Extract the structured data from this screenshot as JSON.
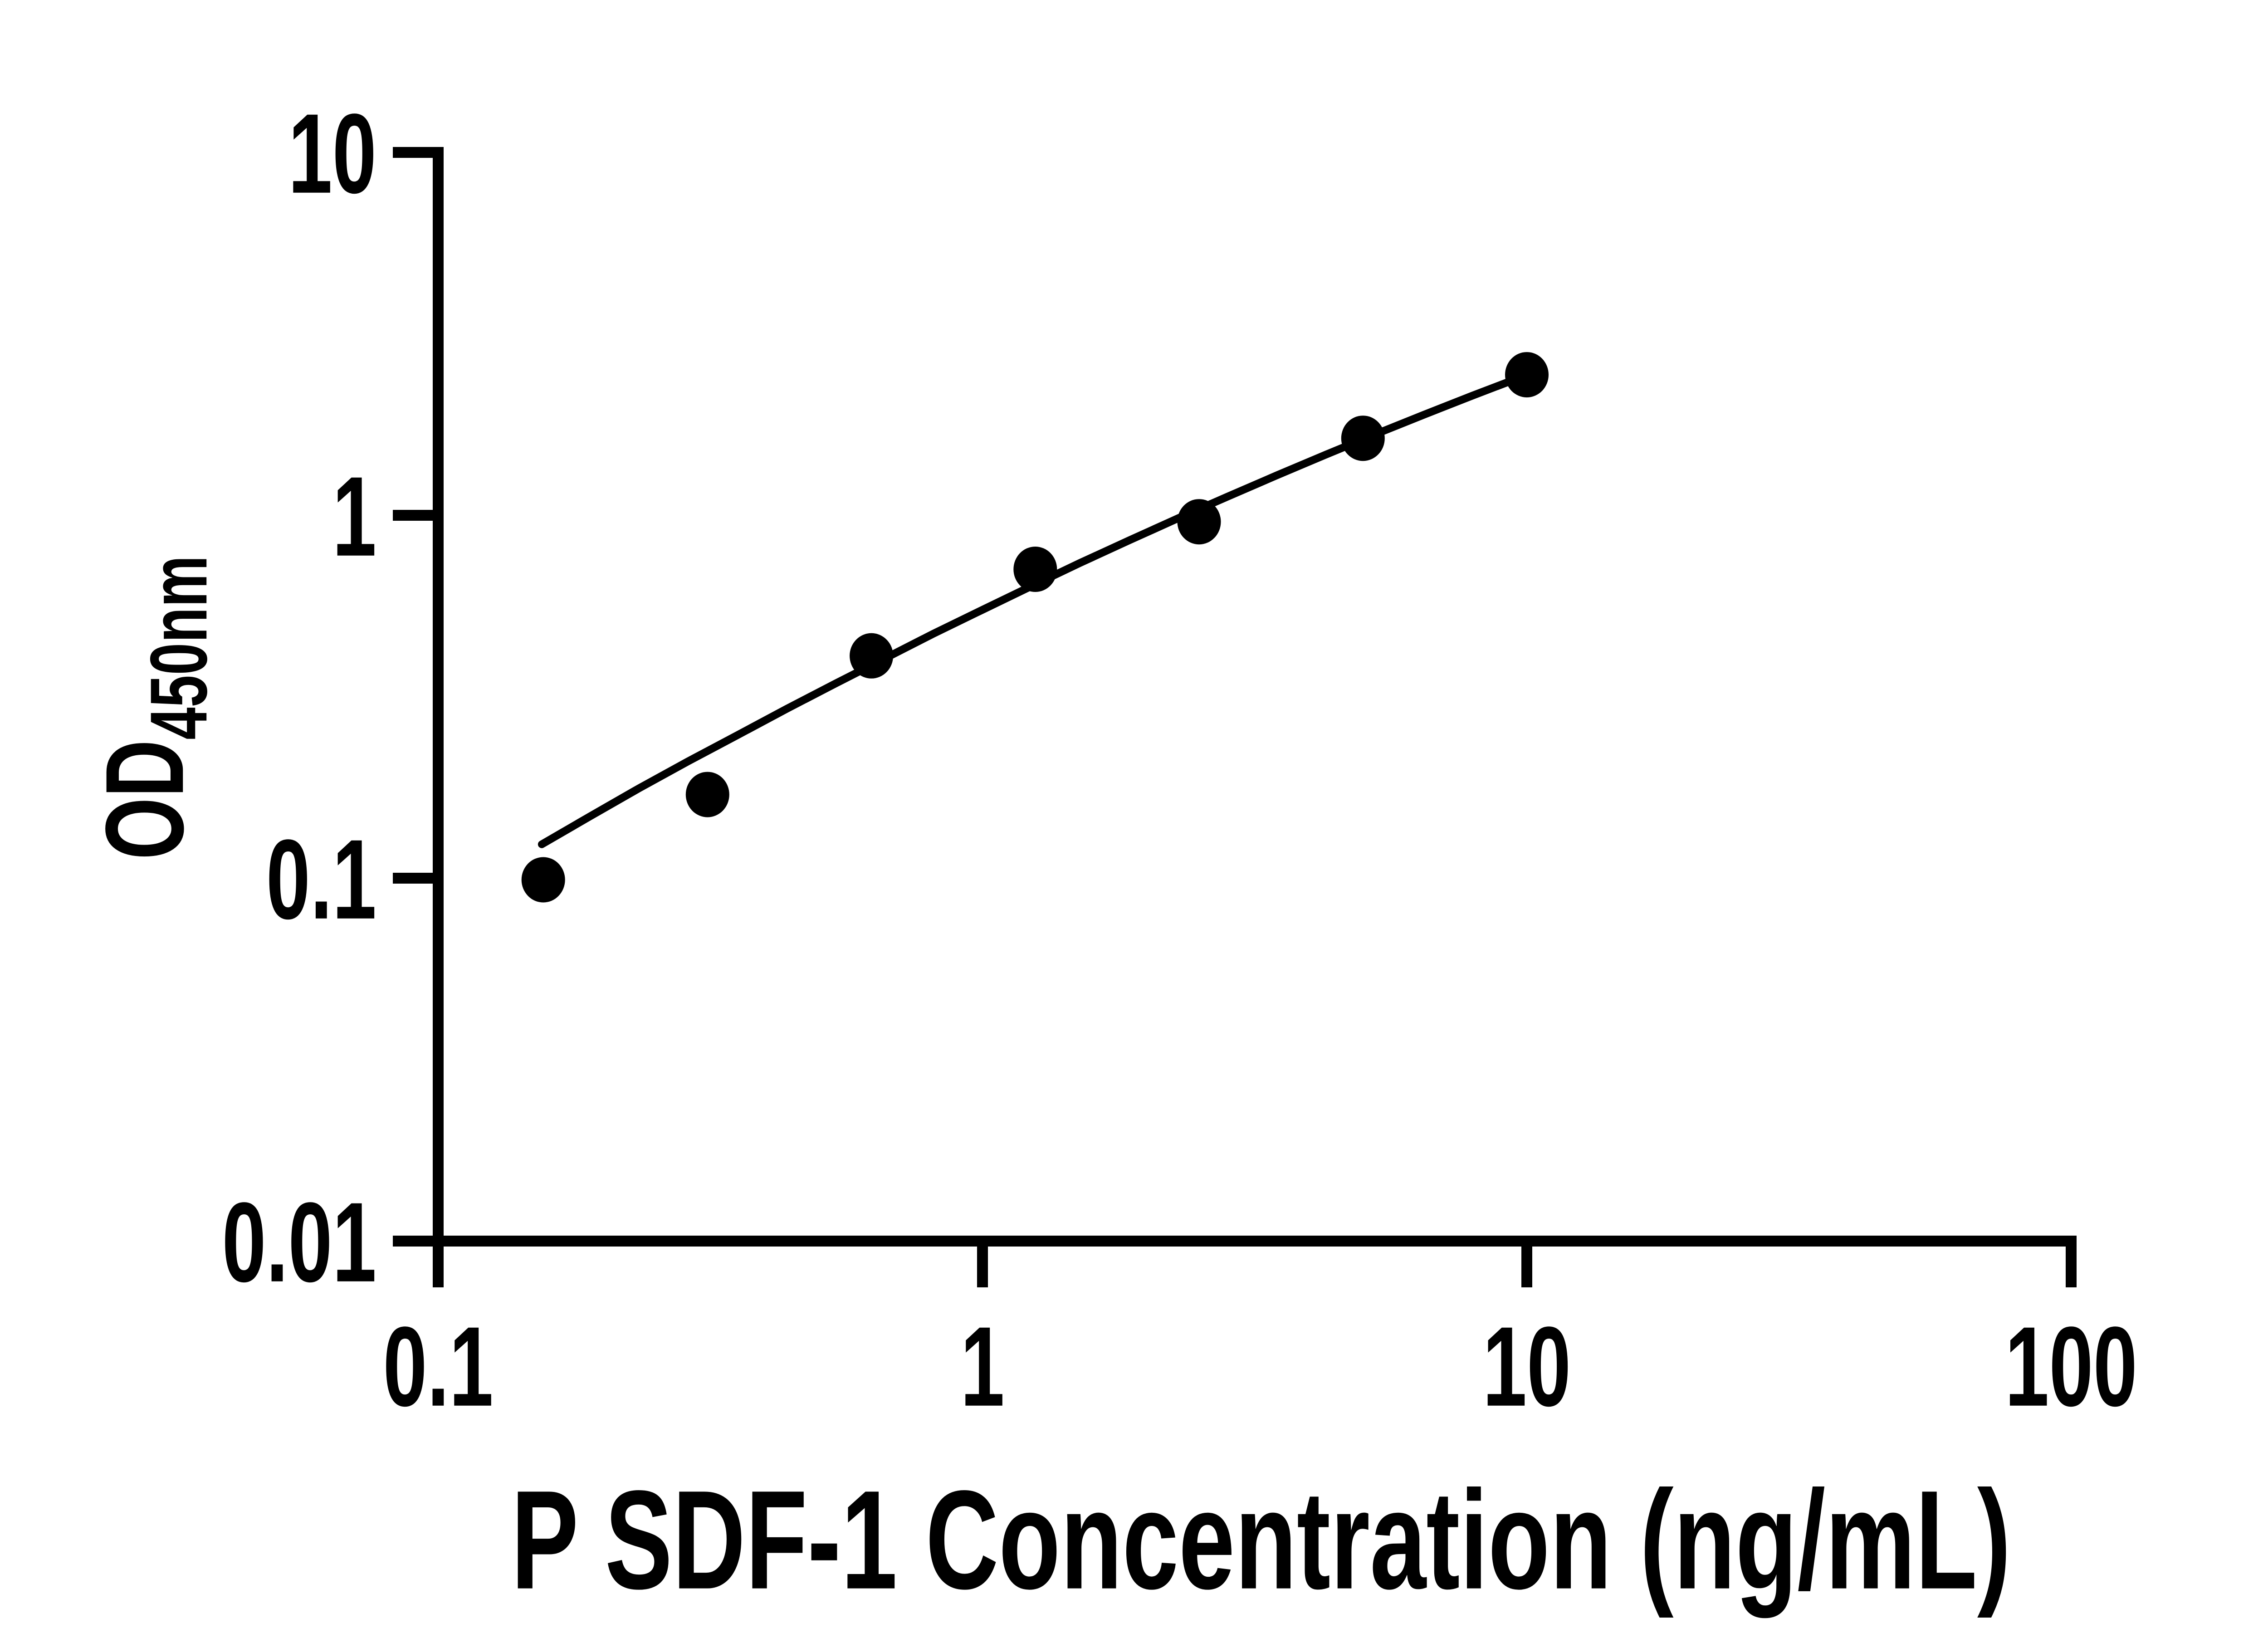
{
  "chart_data": {
    "type": "scatter",
    "title": "",
    "xlabel": "P SDF-1 Concentration (ng/mL)",
    "ylabel": "OD",
    "ylabel_subscript": "450nm",
    "x_scale": "log",
    "y_scale": "log",
    "xlim": [
      0.1,
      100
    ],
    "ylim": [
      0.01,
      10
    ],
    "grid": false,
    "legend": "none",
    "axis_color": "#000000",
    "marker_color": "#000000",
    "line_color": "#000000",
    "background": "#ffffff",
    "x_ticks": [
      {
        "value": 0.1,
        "label": "0.1"
      },
      {
        "value": 1,
        "label": "1"
      },
      {
        "value": 10,
        "label": "10"
      },
      {
        "value": 100,
        "label": "100"
      }
    ],
    "y_ticks": [
      {
        "value": 10,
        "label": "10"
      },
      {
        "value": 1,
        "label": "1"
      },
      {
        "value": 0.1,
        "label": "0.1"
      },
      {
        "value": 0.01,
        "label": "0.01"
      }
    ],
    "points": [
      {
        "x": 0.156,
        "y": 0.099
      },
      {
        "x": 0.3125,
        "y": 0.17
      },
      {
        "x": 0.625,
        "y": 0.41
      },
      {
        "x": 1.25,
        "y": 0.71
      },
      {
        "x": 2.5,
        "y": 0.96
      },
      {
        "x": 5,
        "y": 1.63
      },
      {
        "x": 10,
        "y": 2.44
      }
    ],
    "fit_curve": [
      [
        0.155,
        0.124
      ],
      [
        0.19,
        0.148
      ],
      [
        0.234,
        0.177
      ],
      [
        0.288,
        0.21
      ],
      [
        0.355,
        0.248
      ],
      [
        0.437,
        0.293
      ],
      [
        0.537,
        0.344
      ],
      [
        0.661,
        0.403
      ],
      [
        0.813,
        0.472
      ],
      [
        1.0,
        0.549
      ],
      [
        1.23,
        0.638
      ],
      [
        1.51,
        0.739
      ],
      [
        1.86,
        0.853
      ],
      [
        2.29,
        0.982
      ],
      [
        2.82,
        1.126
      ],
      [
        3.47,
        1.288
      ],
      [
        4.27,
        1.469
      ],
      [
        5.25,
        1.669
      ],
      [
        6.46,
        1.891
      ],
      [
        7.94,
        2.136
      ],
      [
        10.0,
        2.438
      ]
    ]
  }
}
